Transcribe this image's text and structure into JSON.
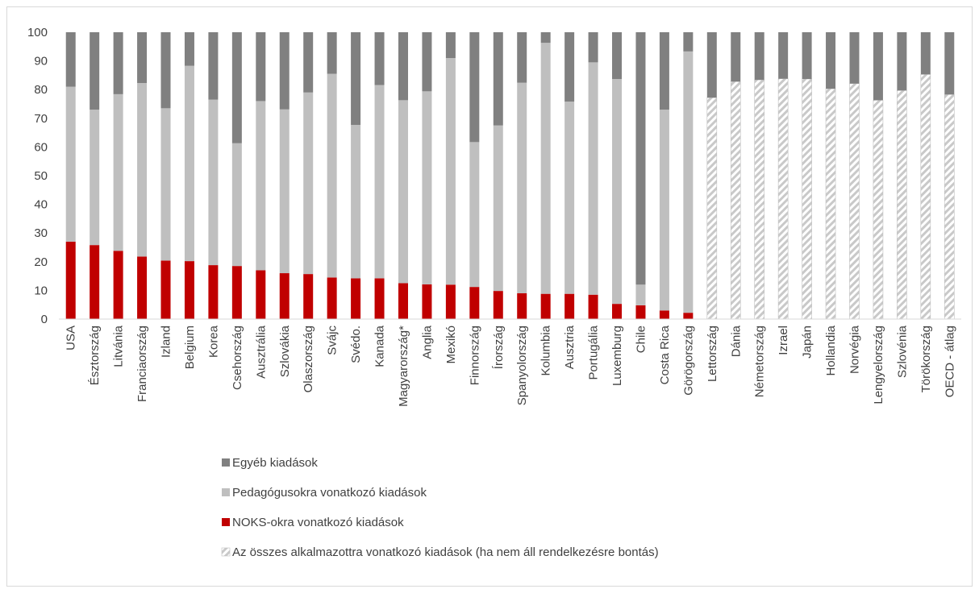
{
  "chart_data": {
    "type": "bar",
    "stacked": true,
    "title": "",
    "xlabel": "",
    "ylabel": "",
    "ylim": [
      0,
      100
    ],
    "yticks": [
      0,
      10,
      20,
      30,
      40,
      50,
      60,
      70,
      80,
      90,
      100
    ],
    "grid": false,
    "legend_position": "bottom",
    "categories": [
      "USA",
      "Észtország",
      "Litvánia",
      "Franciaország",
      "Izland",
      "Belgium",
      "Korea",
      "Csehország",
      "Ausztrália",
      "Szlovákia",
      "Olaszország",
      "Svájc",
      "Svédo.",
      "Kanada",
      "Magyarország*",
      "Anglia",
      "Mexikó",
      "Finnország",
      "Írország",
      "Spanyolország",
      "Kolumbia",
      "Ausztria",
      "Portugália",
      "Luxemburg",
      "Chile",
      "Costa Rica",
      "Görögország",
      "Lettország",
      "Dánia",
      "Németország",
      "Izrael",
      "Japán",
      "Hollandia",
      "Norvégia",
      "Lengyelország",
      "Szlovénia",
      "Törökország",
      "OECD - átlag"
    ],
    "series": [
      {
        "name": "NOKS-okra vonatkozó kiadások",
        "color": "#c00000",
        "values": [
          27,
          25.8,
          23.8,
          21.8,
          20.4,
          20.2,
          18.8,
          18.5,
          17,
          16,
          15.7,
          14.5,
          14.2,
          14.2,
          12.5,
          12.1,
          12,
          11.2,
          9.8,
          9,
          8.8,
          8.8,
          8.5,
          5.3,
          4.8,
          3,
          2.2,
          null,
          null,
          null,
          null,
          null,
          null,
          null,
          null,
          null,
          null,
          null
        ]
      },
      {
        "name": "Pedagógusokra vonatkozó kiadások",
        "color": "#bfbfbf",
        "values": [
          54,
          47.2,
          54.6,
          60.5,
          53.1,
          68.1,
          57.7,
          42.8,
          59,
          57.1,
          63.3,
          71,
          53.5,
          67.4,
          63.8,
          67.3,
          79,
          50.5,
          57.7,
          73.4,
          87.5,
          67,
          81,
          78.4,
          7.2,
          70,
          91.1,
          null,
          null,
          null,
          null,
          null,
          null,
          null,
          null,
          null,
          null,
          null
        ]
      },
      {
        "name": "Egyéb kiadások",
        "color": "#808080",
        "values": [
          19,
          27,
          21.6,
          17.7,
          26.5,
          11.7,
          23.5,
          38.7,
          24,
          26.9,
          21,
          14.5,
          32.3,
          18.4,
          23.7,
          20.6,
          9,
          38.3,
          32.5,
          17.6,
          3.7,
          24.2,
          10.5,
          16.3,
          88,
          27,
          6.7,
          22.8,
          17.2,
          16.6,
          16.2,
          16.3,
          19.7,
          17.9,
          23.7,
          20.3,
          14.7,
          21.7
        ]
      },
      {
        "name": "Az összes alkalmazottra vonatkozó kiadások (ha nem áll rendelkezésre bontás)",
        "color": "#d9d9d9",
        "pattern": "diagonal-hatch",
        "values": [
          null,
          null,
          null,
          null,
          null,
          null,
          null,
          null,
          null,
          null,
          null,
          null,
          null,
          null,
          null,
          null,
          null,
          null,
          null,
          null,
          null,
          null,
          null,
          null,
          null,
          null,
          null,
          77.2,
          82.8,
          83.4,
          83.8,
          83.7,
          80.3,
          82.1,
          76.3,
          79.7,
          85.3,
          78.3
        ]
      }
    ],
    "legend_order": [
      "Egyéb kiadások",
      "Pedagógusokra vonatkozó kiadások",
      "NOKS-okra vonatkozó kiadások",
      "Az összes alkalmazottra vonatkozó kiadások (ha nem áll rendelkezésre bontás)"
    ]
  }
}
